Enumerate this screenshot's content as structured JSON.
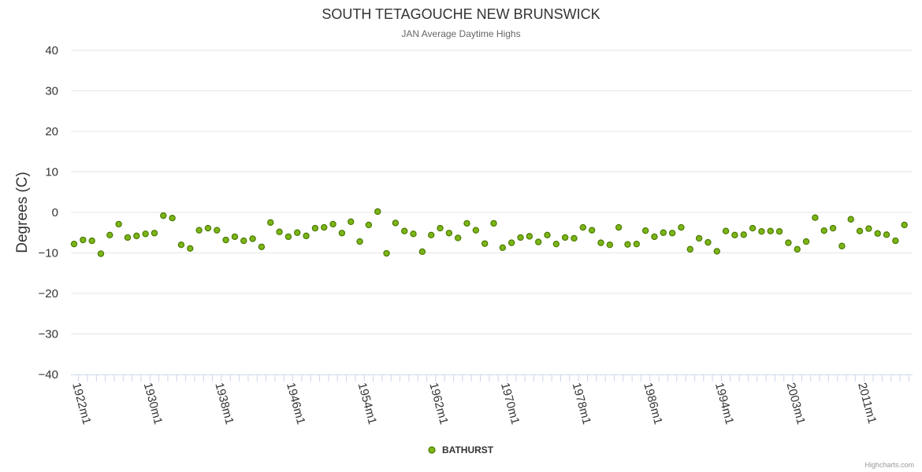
{
  "title": "SOUTH TETAGOUCHE NEW BRUNSWICK",
  "subtitle": "JAN Average Daytime Highs",
  "credits": "Highcharts.com",
  "colors": {
    "marker_fill": "#7cb518",
    "marker_stroke": "#4a7a00"
  },
  "chart_data": {
    "type": "scatter",
    "title": "SOUTH TETAGOUCHE NEW BRUNSWICK",
    "subtitle": "JAN Average Daytime Highs",
    "ylabel": "Degrees (C)",
    "xlabel": "",
    "ylim": [
      -40,
      40
    ],
    "yticks": [
      40,
      30,
      20,
      10,
      0,
      -10,
      -20,
      -30,
      -40
    ],
    "ytick_labels": [
      "40",
      "30",
      "20",
      "10",
      "0",
      "−10",
      "−20",
      "−30",
      "−40"
    ],
    "grid": true,
    "legend": "bottom-center",
    "xtick_labels": [
      {
        "index": 0,
        "label": "1922m1"
      },
      {
        "index": 8,
        "label": "1930m1"
      },
      {
        "index": 16,
        "label": "1938m1"
      },
      {
        "index": 24,
        "label": "1946m1"
      },
      {
        "index": 32,
        "label": "1954m1"
      },
      {
        "index": 40,
        "label": "1962m1"
      },
      {
        "index": 48,
        "label": "1970m1"
      },
      {
        "index": 56,
        "label": "1978m1"
      },
      {
        "index": 64,
        "label": "1986m1"
      },
      {
        "index": 72,
        "label": "1994m1"
      },
      {
        "index": 80,
        "label": "2003m1"
      },
      {
        "index": 88,
        "label": "2011m1"
      }
    ],
    "series": [
      {
        "name": "BATHURST",
        "values": [
          -7.8,
          -6.8,
          -7.0,
          -10.2,
          -5.6,
          -2.9,
          -6.2,
          -5.8,
          -5.3,
          -5.1,
          -0.8,
          -1.4,
          -8.0,
          -8.9,
          -4.4,
          -3.9,
          -4.4,
          -6.8,
          -6.0,
          -7.0,
          -6.5,
          -8.5,
          -2.5,
          -4.8,
          -6.0,
          -5.0,
          -5.8,
          -3.9,
          -3.7,
          -2.9,
          -5.1,
          -2.3,
          -7.2,
          -3.1,
          0.2,
          -10.1,
          -2.6,
          -4.6,
          -5.3,
          -9.7,
          -5.6,
          -3.9,
          -5.1,
          -6.3,
          -2.7,
          -4.4,
          -7.7,
          -2.7,
          -8.7,
          -7.5,
          -6.2,
          -5.9,
          -7.3,
          -5.6,
          -7.8,
          -6.2,
          -6.4,
          -3.7,
          -4.4,
          -7.5,
          -8.0,
          -3.7,
          -7.9,
          -7.8,
          -4.5,
          -6.0,
          -5.0,
          -5.1,
          -3.7,
          -9.1,
          -6.4,
          -7.4,
          -9.6,
          -4.6,
          -5.6,
          -5.5,
          -3.9,
          -4.7,
          -4.6,
          -4.7,
          -7.5,
          -9.1,
          -7.2,
          -1.3,
          -4.5,
          -3.9,
          -8.3,
          -1.7,
          -4.6,
          -4.0,
          -5.2,
          -5.5,
          -7.0,
          -3.1
        ]
      }
    ]
  }
}
